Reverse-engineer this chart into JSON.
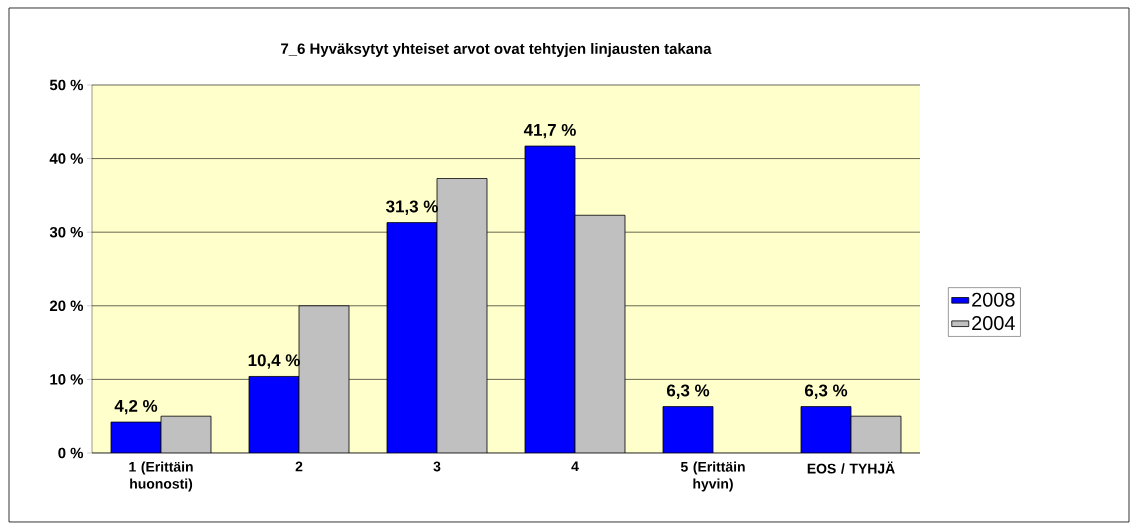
{
  "chart_data": {
    "type": "bar",
    "title": "7_6 Hyväksytyt yhteiset arvot ovat tehtyjen linjausten takana",
    "categories": [
      "1 (Erittäin huonosti)",
      "2",
      "3",
      "4",
      "5 (Erittäin hyvin)",
      "EOS / TYHJÄ"
    ],
    "series": [
      {
        "name": "2008",
        "color": "#0000ff",
        "values": [
          4.2,
          10.4,
          31.3,
          41.7,
          6.3,
          6.3
        ],
        "value_labels": [
          "4,2 %",
          "10,4 %",
          "31,3 %",
          "41,7 %",
          "6,3 %",
          "6,3 %"
        ]
      },
      {
        "name": "2004",
        "color": "#c0c0c0",
        "values": [
          5.0,
          20.0,
          37.3,
          32.3,
          null,
          5.0
        ]
      }
    ],
    "ylim": [
      0,
      50
    ],
    "yticks": [
      {
        "value": 0,
        "label": "0 %"
      },
      {
        "value": 10,
        "label": "10 %"
      },
      {
        "value": 20,
        "label": "20 %"
      },
      {
        "value": 30,
        "label": "30 %"
      },
      {
        "value": 40,
        "label": "40 %"
      },
      {
        "value": 50,
        "label": "50 %"
      }
    ],
    "grid": "y",
    "legend": "right"
  }
}
